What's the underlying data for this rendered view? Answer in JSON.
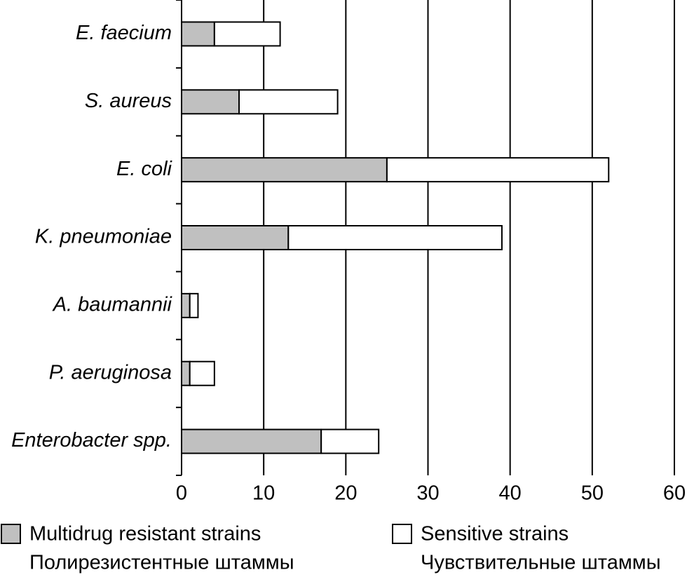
{
  "chart_data": {
    "type": "stacked_hbar",
    "categories": [
      "E. faecium",
      "S. aureus",
      "E. coli",
      "K. pneumoniae",
      "A. baumannii",
      "P. aeruginosa",
      "Enterobacter spp."
    ],
    "series": [
      {
        "name": "Multidrug resistant strains",
        "name_ru": "Полирезистентные штаммы",
        "color": "#c0c0c0",
        "values": [
          4,
          7,
          25,
          13,
          1,
          1,
          17
        ]
      },
      {
        "name": "Sensitive strains",
        "name_ru": "Чувствительные штаммы",
        "color": "#ffffff",
        "values": [
          8,
          12,
          27,
          26,
          1,
          3,
          7
        ]
      }
    ],
    "xlim": [
      0,
      60
    ],
    "xticks": [
      0,
      10,
      20,
      30,
      40,
      50,
      60
    ],
    "grid": true
  }
}
